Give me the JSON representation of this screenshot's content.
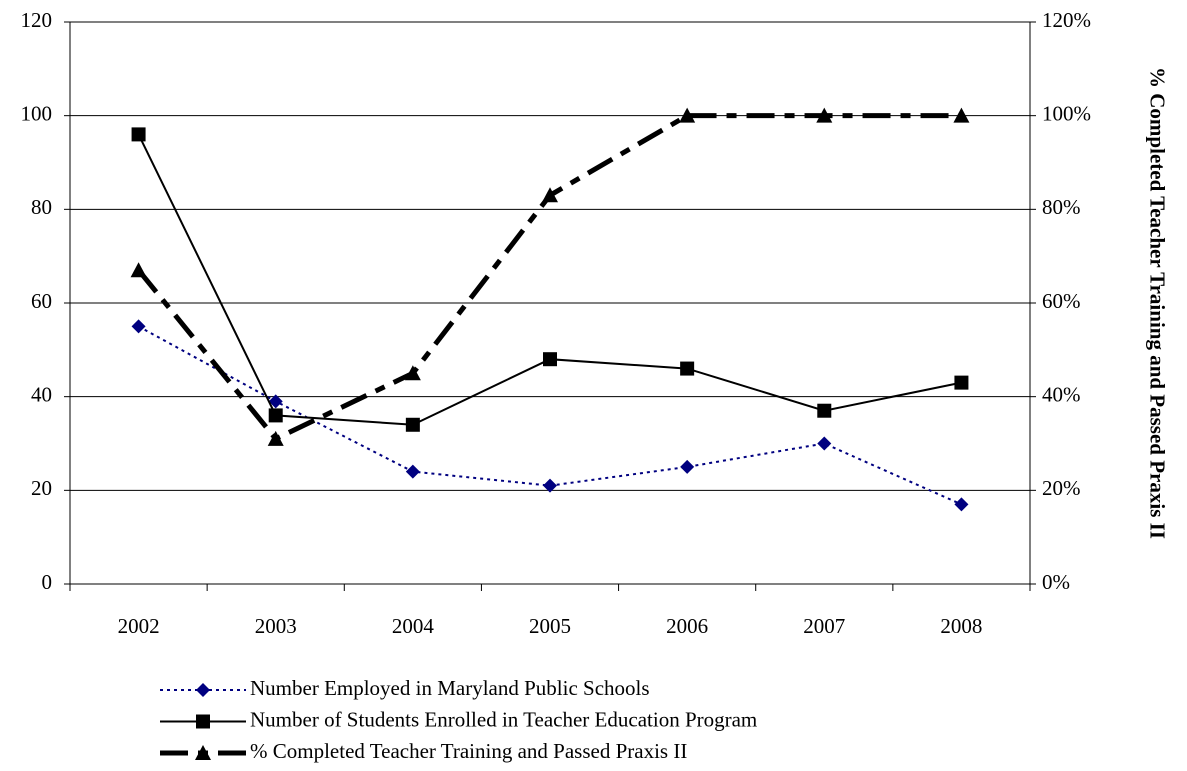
{
  "chart_data": {
    "type": "line",
    "categories": [
      "2002",
      "2003",
      "2004",
      "2005",
      "2006",
      "2007",
      "2008"
    ],
    "series": [
      {
        "name": "Number Employed in Maryland Public Schools",
        "color": "#000080",
        "line_style": "dotted",
        "marker": "diamond",
        "values": [
          55,
          39,
          24,
          21,
          25,
          30,
          17
        ]
      },
      {
        "name": "Number of Students Enrolled in Teacher Education Program",
        "color": "#000000",
        "line_style": "solid",
        "marker": "square",
        "values": [
          96,
          36,
          34,
          48,
          46,
          37,
          43
        ]
      },
      {
        "name": "% Completed Teacher Training and Passed Praxis II",
        "color": "#000000",
        "line_style": "dash-dot",
        "marker": "triangle",
        "axis": "y2",
        "values": [
          67,
          31,
          45,
          83,
          100,
          100,
          100
        ]
      }
    ],
    "ylim": [
      0,
      120
    ],
    "yticks": [
      0,
      20,
      40,
      60,
      80,
      100,
      120
    ],
    "y2lim": [
      0,
      120
    ],
    "y2ticks": [
      {
        "value": 0,
        "label": "0%"
      },
      {
        "value": 20,
        "label": "20%"
      },
      {
        "value": 40,
        "label": "40%"
      },
      {
        "value": 60,
        "label": "60%"
      },
      {
        "value": 80,
        "label": "80%"
      },
      {
        "value": 100,
        "label": "100%"
      },
      {
        "value": 120,
        "label": "120%"
      }
    ],
    "y2label": "% Completed Teacher Training and Passed Praxis II",
    "grid": true,
    "legend": "bottom"
  }
}
